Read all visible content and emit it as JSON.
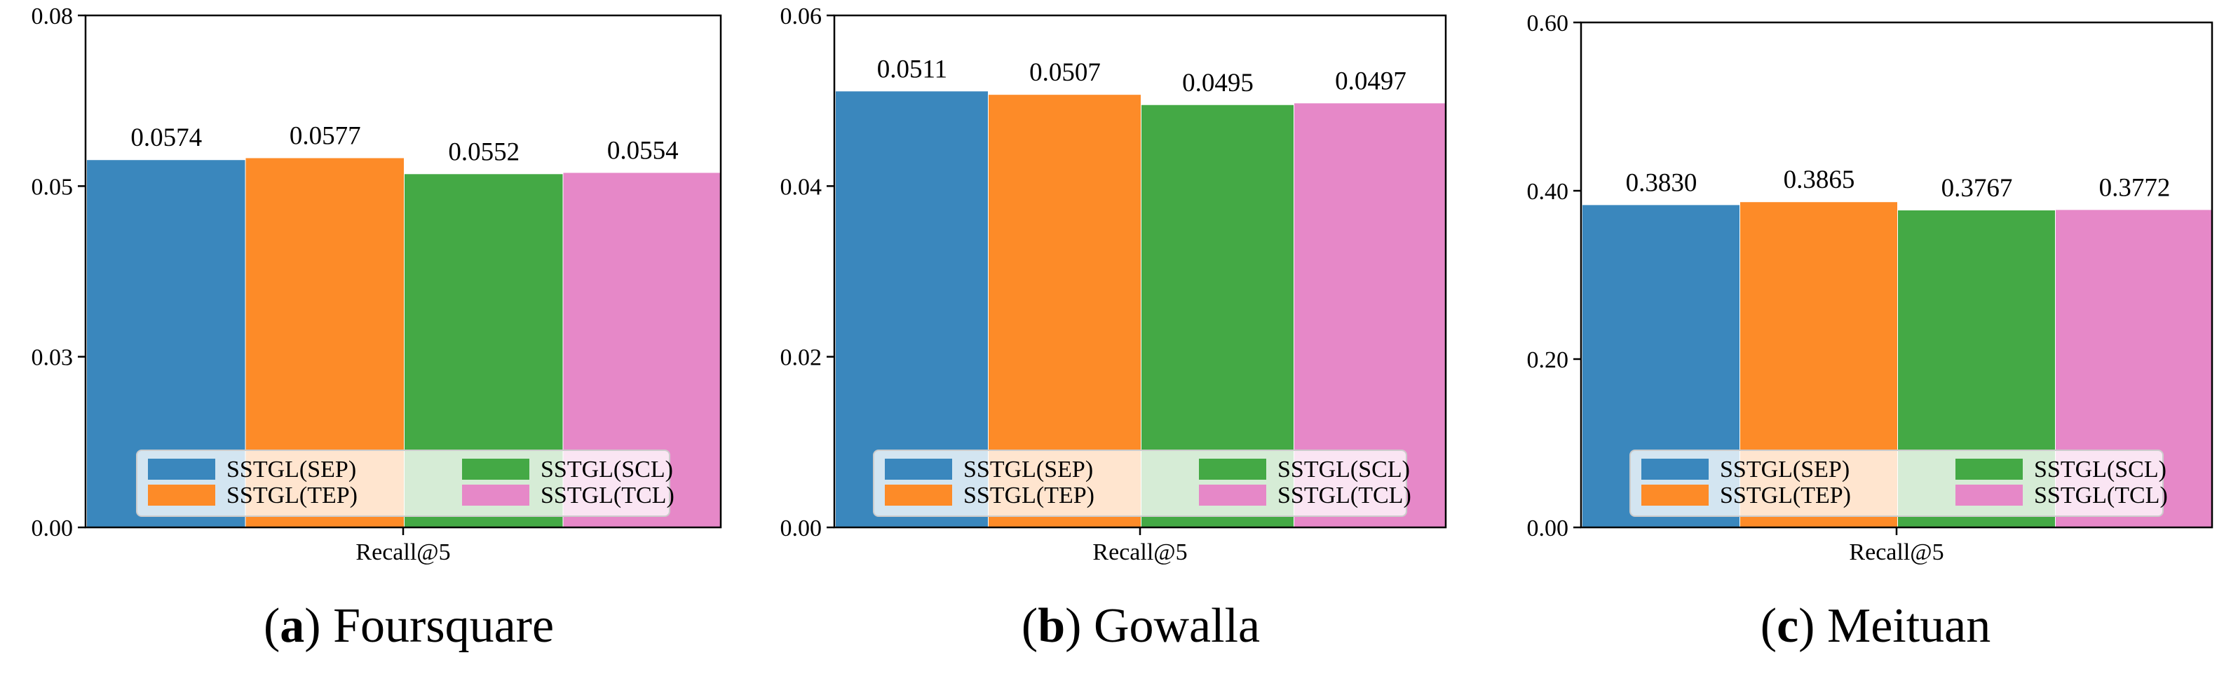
{
  "colors": {
    "SSTGL(SEP)": "#3a87bd",
    "SSTGL(TEP)": "#fd8b28",
    "SSTGL(SCL)": "#44a945",
    "SSTGL(TCL)": "#e688c8"
  },
  "chart_data": [
    {
      "type": "bar",
      "caption_letter": "a",
      "caption_name": "Foursquare",
      "xlabel": "Recall@5",
      "ylim": [
        0,
        0.08
      ],
      "yticks": [
        "0.00",
        "0.03",
        "0.05",
        "0.08"
      ],
      "ytick_values": [
        0,
        0.02667,
        0.05333,
        0.08
      ],
      "legend_location": "lower center",
      "series": [
        {
          "name": "SSTGL(SEP)",
          "value": 0.0574,
          "label": "0.0574"
        },
        {
          "name": "SSTGL(TEP)",
          "value": 0.0577,
          "label": "0.0577"
        },
        {
          "name": "SSTGL(SCL)",
          "value": 0.0552,
          "label": "0.0552"
        },
        {
          "name": "SSTGL(TCL)",
          "value": 0.0554,
          "label": "0.0554"
        }
      ]
    },
    {
      "type": "bar",
      "caption_letter": "b",
      "caption_name": "Gowalla",
      "xlabel": "Recall@5",
      "ylim": [
        0,
        0.06
      ],
      "yticks": [
        "0.00",
        "0.02",
        "0.04",
        "0.06"
      ],
      "ytick_values": [
        0,
        0.02,
        0.04,
        0.06
      ],
      "legend_location": "lower center",
      "series": [
        {
          "name": "SSTGL(SEP)",
          "value": 0.0511,
          "label": "0.0511"
        },
        {
          "name": "SSTGL(TEP)",
          "value": 0.0507,
          "label": "0.0507"
        },
        {
          "name": "SSTGL(SCL)",
          "value": 0.0495,
          "label": "0.0495"
        },
        {
          "name": "SSTGL(TCL)",
          "value": 0.0497,
          "label": "0.0497"
        }
      ]
    },
    {
      "type": "bar",
      "caption_letter": "c",
      "caption_name": "Meituan",
      "xlabel": "Recall@5",
      "ylim": [
        0,
        0.6
      ],
      "yticks": [
        "0.00",
        "0.20",
        "0.40",
        "0.60"
      ],
      "ytick_values": [
        0,
        0.2,
        0.4,
        0.6
      ],
      "legend_location": "lower center",
      "series": [
        {
          "name": "SSTGL(SEP)",
          "value": 0.383,
          "label": "0.3830"
        },
        {
          "name": "SSTGL(TEP)",
          "value": 0.3865,
          "label": "0.3865"
        },
        {
          "name": "SSTGL(SCL)",
          "value": 0.3767,
          "label": "0.3767"
        },
        {
          "name": "SSTGL(TCL)",
          "value": 0.3772,
          "label": "0.3772"
        }
      ]
    }
  ]
}
